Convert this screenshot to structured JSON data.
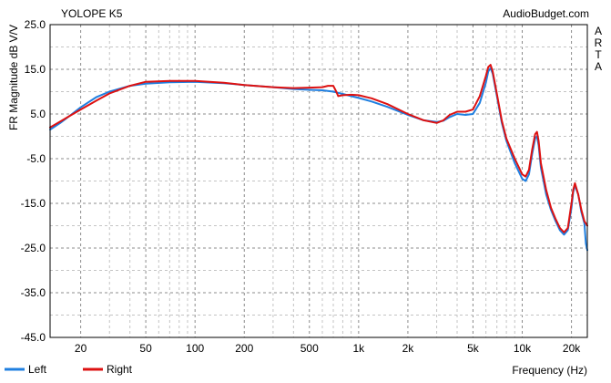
{
  "chart_data": {
    "type": "line",
    "title": "YOLOPE K5",
    "source": "AudioBudget.com",
    "side_label": "ARTA",
    "ylabel": "FR Magnitude dB V/V",
    "xlabel": "Frequency (Hz)",
    "xscale": "log",
    "xlim": [
      13,
      25000
    ],
    "ylim": [
      -45,
      25
    ],
    "x_ticks": [
      20,
      50,
      100,
      200,
      500,
      1000,
      2000,
      5000,
      10000,
      20000
    ],
    "x_tick_labels": [
      "20",
      "50",
      "100",
      "200",
      "500",
      "1k",
      "2k",
      "5k",
      "10k",
      "20k"
    ],
    "y_ticks": [
      25,
      15,
      5,
      -5,
      -15,
      -25,
      -35,
      -45
    ],
    "y_tick_labels": [
      "25.0",
      "15.0",
      "5.0",
      "-5.0",
      "-15.0",
      "-25.0",
      "-35.0",
      "-45.0"
    ],
    "grid": true,
    "legend_position": "bottom-left",
    "series": [
      {
        "name": "Left",
        "color": "#1f7fe0",
        "points": [
          [
            13,
            1.5
          ],
          [
            15,
            3
          ],
          [
            17,
            4.5
          ],
          [
            20,
            6.5
          ],
          [
            25,
            8.8
          ],
          [
            30,
            10
          ],
          [
            40,
            11.3
          ],
          [
            50,
            11.8
          ],
          [
            70,
            12.1
          ],
          [
            100,
            12.2
          ],
          [
            150,
            11.9
          ],
          [
            200,
            11.5
          ],
          [
            300,
            11
          ],
          [
            400,
            10.6
          ],
          [
            500,
            10.4
          ],
          [
            600,
            10.3
          ],
          [
            700,
            10
          ],
          [
            800,
            9.5
          ],
          [
            900,
            9
          ],
          [
            1000,
            8.6
          ],
          [
            1200,
            7.8
          ],
          [
            1500,
            6.6
          ],
          [
            2000,
            4.8
          ],
          [
            2500,
            3.6
          ],
          [
            3000,
            3.2
          ],
          [
            3300,
            3.5
          ],
          [
            3600,
            4.3
          ],
          [
            4000,
            5
          ],
          [
            4500,
            4.8
          ],
          [
            5000,
            5
          ],
          [
            5500,
            7.5
          ],
          [
            6000,
            12
          ],
          [
            6200,
            14.5
          ],
          [
            6400,
            15.3
          ],
          [
            6600,
            14
          ],
          [
            7000,
            9
          ],
          [
            7500,
            3
          ],
          [
            8000,
            -1
          ],
          [
            9000,
            -6
          ],
          [
            10000,
            -9.5
          ],
          [
            10500,
            -10
          ],
          [
            11000,
            -8.5
          ],
          [
            11500,
            -4
          ],
          [
            12000,
            -0.5
          ],
          [
            12300,
            0
          ],
          [
            12600,
            -2
          ],
          [
            13000,
            -7
          ],
          [
            14000,
            -13
          ],
          [
            15000,
            -16.5
          ],
          [
            16000,
            -19
          ],
          [
            17000,
            -21
          ],
          [
            18000,
            -22
          ],
          [
            19000,
            -21
          ],
          [
            20000,
            -16
          ],
          [
            20500,
            -12.5
          ],
          [
            21000,
            -11
          ],
          [
            22000,
            -13
          ],
          [
            23000,
            -17
          ],
          [
            24000,
            -19.5
          ],
          [
            24500,
            -24
          ],
          [
            25000,
            -25.5
          ]
        ]
      },
      {
        "name": "Right",
        "color": "#dd1111",
        "points": [
          [
            13,
            2
          ],
          [
            15,
            3.3
          ],
          [
            17,
            4.5
          ],
          [
            20,
            6
          ],
          [
            25,
            8
          ],
          [
            30,
            9.6
          ],
          [
            40,
            11.3
          ],
          [
            50,
            12.2
          ],
          [
            70,
            12.4
          ],
          [
            100,
            12.4
          ],
          [
            150,
            12
          ],
          [
            200,
            11.5
          ],
          [
            300,
            11
          ],
          [
            400,
            10.8
          ],
          [
            500,
            10.9
          ],
          [
            600,
            11
          ],
          [
            650,
            11.3
          ],
          [
            700,
            11.3
          ],
          [
            730,
            10
          ],
          [
            750,
            9
          ],
          [
            800,
            9.2
          ],
          [
            900,
            9.3
          ],
          [
            1000,
            9.2
          ],
          [
            1200,
            8.5
          ],
          [
            1500,
            7.2
          ],
          [
            2000,
            5
          ],
          [
            2500,
            3.6
          ],
          [
            3000,
            3
          ],
          [
            3300,
            3.6
          ],
          [
            3600,
            4.8
          ],
          [
            4000,
            5.5
          ],
          [
            4500,
            5.5
          ],
          [
            5000,
            6
          ],
          [
            5500,
            9
          ],
          [
            6000,
            13.5
          ],
          [
            6200,
            15.5
          ],
          [
            6400,
            16
          ],
          [
            6600,
            14.5
          ],
          [
            7000,
            9.5
          ],
          [
            7500,
            3.5
          ],
          [
            8000,
            -0.5
          ],
          [
            9000,
            -5
          ],
          [
            10000,
            -8.5
          ],
          [
            10500,
            -9
          ],
          [
            11000,
            -7.5
          ],
          [
            11500,
            -3
          ],
          [
            12000,
            0.5
          ],
          [
            12300,
            1
          ],
          [
            12600,
            -1
          ],
          [
            13000,
            -6
          ],
          [
            14000,
            -12
          ],
          [
            15000,
            -16
          ],
          [
            16000,
            -18.5
          ],
          [
            17000,
            -20.5
          ],
          [
            18000,
            -21.5
          ],
          [
            19000,
            -20.5
          ],
          [
            20000,
            -15
          ],
          [
            20500,
            -12
          ],
          [
            21000,
            -10.5
          ],
          [
            22000,
            -13
          ],
          [
            23000,
            -16.5
          ],
          [
            24000,
            -19
          ],
          [
            25000,
            -20
          ]
        ]
      }
    ]
  }
}
